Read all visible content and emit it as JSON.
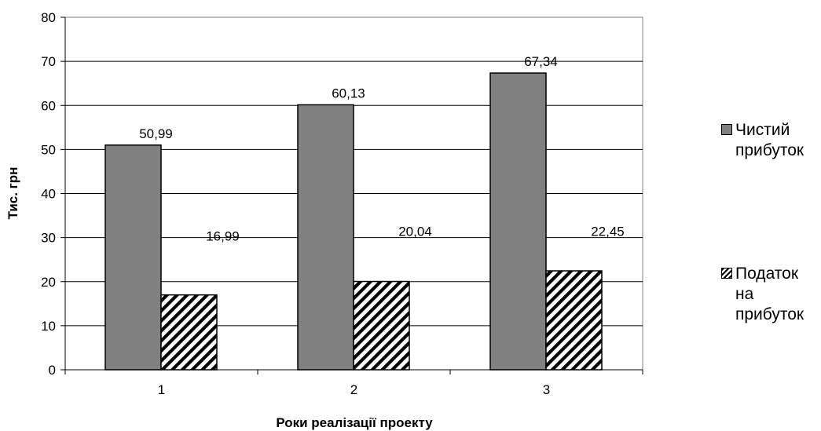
{
  "chart_data": {
    "type": "bar",
    "title": "",
    "xlabel": "Роки реалізації проекту",
    "ylabel": "Тис. грн",
    "categories": [
      "1",
      "2",
      "3"
    ],
    "ylim": [
      0,
      80
    ],
    "yticks": [
      0,
      10,
      20,
      30,
      40,
      50,
      60,
      70,
      80
    ],
    "grid": true,
    "legend_position": "right",
    "series": [
      {
        "name": "Чистий прибуток",
        "values": [
          50.99,
          60.13,
          67.34
        ],
        "labels": [
          "50,99",
          "60,13",
          "67,34"
        ],
        "color": "#808080",
        "pattern": "solid"
      },
      {
        "name": "Податок на прибуток",
        "values": [
          16.99,
          20.04,
          22.45
        ],
        "labels": [
          "16,99",
          "20,04",
          "22,45"
        ],
        "color": "#000000",
        "pattern": "diagonal-hatch"
      }
    ]
  },
  "legend": [
    {
      "label": "Чистий\nприбуток"
    },
    {
      "label": "Податок\nна\nприбуток"
    }
  ]
}
